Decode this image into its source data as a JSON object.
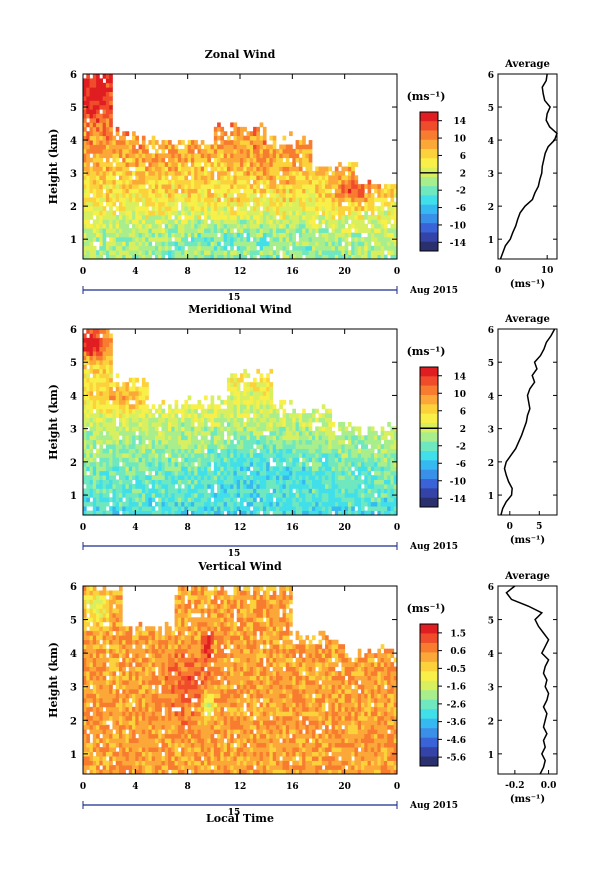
{
  "figure": {
    "x_axis_title": "Local Time",
    "date_label": "Aug 2015",
    "day_label": "15",
    "y_axis_title": "Height (km)",
    "unit_label": "(ms⁻¹)",
    "colormap": [
      "#2a2f6e",
      "#3343a8",
      "#3a63d8",
      "#3a8fe8",
      "#36b8f0",
      "#40dfea",
      "#6fe8c0",
      "#a8ee8c",
      "#d8f060",
      "#f8f048",
      "#fcd23c",
      "#fca838",
      "#f87c30",
      "#f04c2c",
      "#e01e22"
    ]
  },
  "chart_data": [
    {
      "type": "heatmap",
      "title": "Zonal Wind",
      "xlabel": "Local Time",
      "ylabel": "Height (km)",
      "x_ticks": [
        "0",
        "4",
        "8",
        "12",
        "16",
        "20",
        "0"
      ],
      "xlim": [
        0,
        24
      ],
      "y_ticks": [
        "1",
        "2",
        "3",
        "4",
        "5",
        "6"
      ],
      "ylim": [
        0.4,
        6
      ],
      "colorbar": {
        "unit": "(ms⁻¹)",
        "ticks": [
          "14",
          "10",
          "6",
          "2",
          "-2",
          "-6",
          "-10",
          "-14"
        ],
        "range": [
          -16,
          16
        ],
        "zero_line": 2,
        "colors": [
          "#e01e22",
          "#f04c2c",
          "#f87c30",
          "#fca838",
          "#fcd23c",
          "#f8f048",
          "#d8f060",
          "#a8ee8c",
          "#6fe8c0",
          "#40dfea",
          "#36b8f0",
          "#3a8fe8",
          "#3a63d8",
          "#3343a8",
          "#2a2f6e"
        ]
      },
      "field": {
        "surface_value": 0,
        "gradient_per_km": 2.6,
        "top_value": 12,
        "noise": 3,
        "blobs": [
          {
            "t": 0.8,
            "h": 5.5,
            "dt": 1.2,
            "dh": 0.6,
            "v": 16
          },
          {
            "t": 5,
            "h": 3.9,
            "dt": 2.5,
            "dh": 0.4,
            "v": 9
          },
          {
            "t": 14.5,
            "h": 3.6,
            "dt": 2,
            "dh": 0.8,
            "v": 9
          },
          {
            "t": 21,
            "h": 2.5,
            "dt": 2,
            "dh": 0.4,
            "v": 12
          },
          {
            "t": 12,
            "h": 1.0,
            "dt": 8,
            "dh": 0.5,
            "v": -2
          }
        ],
        "coverage": [
          {
            "t0": 0,
            "t1": 2.2,
            "hmax": 6
          },
          {
            "t0": 2.2,
            "t1": 4,
            "hmax": 4.2
          },
          {
            "t0": 4,
            "t1": 10,
            "hmax": 3.9
          },
          {
            "t0": 10,
            "t1": 14,
            "hmax": 4.4
          },
          {
            "t0": 14,
            "t1": 17.5,
            "hmax": 4.0
          },
          {
            "t0": 17.5,
            "t1": 21,
            "hmax": 3.2
          },
          {
            "t0": 21,
            "t1": 24,
            "hmax": 2.6
          }
        ]
      },
      "average": {
        "title": "Average",
        "xlabel": "(ms⁻¹)",
        "x_ticks": [
          "0",
          "10"
        ],
        "xlim": [
          0,
          12
        ],
        "heights": [
          0.4,
          0.6,
          0.8,
          1.0,
          1.2,
          1.4,
          1.6,
          1.8,
          2.0,
          2.2,
          2.4,
          2.6,
          2.8,
          3.0,
          3.2,
          3.4,
          3.6,
          3.8,
          4.0,
          4.2,
          4.4,
          4.6,
          4.8,
          5.0,
          5.2,
          5.4,
          5.6,
          5.8,
          6.0
        ],
        "values": [
          0.5,
          1.0,
          1.5,
          2.5,
          3.0,
          3.6,
          4.0,
          4.5,
          5.5,
          7.0,
          7.5,
          8.2,
          8.5,
          8.9,
          9.0,
          9.3,
          9.6,
          10.2,
          11.5,
          12.0,
          10.5,
          9.8,
          10.0,
          10.6,
          9.5,
          9.2,
          9.0,
          9.8,
          10.0
        ]
      }
    },
    {
      "type": "heatmap",
      "title": "Meridional Wind",
      "xlabel": "Local Time",
      "ylabel": "Height (km)",
      "x_ticks": [
        "0",
        "4",
        "8",
        "12",
        "16",
        "20",
        "0"
      ],
      "xlim": [
        0,
        24
      ],
      "y_ticks": [
        "1",
        "2",
        "3",
        "4",
        "5",
        "6"
      ],
      "ylim": [
        0.4,
        6
      ],
      "colorbar": {
        "unit": "(ms⁻¹)",
        "ticks": [
          "14",
          "10",
          "6",
          "2",
          "-2",
          "-6",
          "-10",
          "-14"
        ],
        "range": [
          -16,
          16
        ],
        "zero_line": 2,
        "colors": [
          "#e01e22",
          "#f04c2c",
          "#f87c30",
          "#fca838",
          "#fcd23c",
          "#f8f048",
          "#d8f060",
          "#a8ee8c",
          "#6fe8c0",
          "#40dfea",
          "#36b8f0",
          "#3a8fe8",
          "#3a63d8",
          "#3343a8",
          "#2a2f6e"
        ]
      },
      "field": {
        "surface_value": -4,
        "gradient_per_km": 2.0,
        "top_value": 8,
        "noise": 2.5,
        "blobs": [
          {
            "t": 0.8,
            "h": 5.6,
            "dt": 1.2,
            "dh": 0.5,
            "v": 16
          },
          {
            "t": 13.5,
            "h": 1.6,
            "dt": 5,
            "dh": 0.9,
            "v": -4
          },
          {
            "t": 3,
            "h": 4.0,
            "dt": 2.5,
            "dh": 0.5,
            "v": 8
          }
        ],
        "coverage": [
          {
            "t0": 0,
            "t1": 2.2,
            "hmax": 6
          },
          {
            "t0": 2.2,
            "t1": 5,
            "hmax": 4.4
          },
          {
            "t0": 5,
            "t1": 11,
            "hmax": 3.8
          },
          {
            "t0": 11,
            "t1": 14.5,
            "hmax": 4.6
          },
          {
            "t0": 14.5,
            "t1": 19,
            "hmax": 3.6
          },
          {
            "t0": 19,
            "t1": 24,
            "hmax": 3.0
          }
        ]
      },
      "average": {
        "title": "Average",
        "xlabel": "(ms⁻¹)",
        "x_ticks": [
          "0",
          "5"
        ],
        "xlim": [
          -2,
          8
        ],
        "heights": [
          0.4,
          0.6,
          0.8,
          1.0,
          1.2,
          1.4,
          1.6,
          1.8,
          2.0,
          2.2,
          2.4,
          2.6,
          2.8,
          3.0,
          3.2,
          3.4,
          3.6,
          3.8,
          4.0,
          4.2,
          4.4,
          4.6,
          4.8,
          5.0,
          5.2,
          5.4,
          5.6,
          5.8,
          6.0
        ],
        "values": [
          -1.5,
          -1.2,
          -0.6,
          0.3,
          0.4,
          -0.2,
          -0.6,
          -0.9,
          -0.6,
          0.2,
          1.0,
          1.5,
          2.0,
          2.4,
          2.8,
          3.0,
          3.4,
          3.2,
          3.0,
          3.4,
          4.2,
          3.8,
          4.6,
          4.2,
          5.2,
          5.8,
          6.2,
          7.0,
          7.6
        ]
      }
    },
    {
      "type": "heatmap",
      "title": "Vertical Wind",
      "xlabel": "Local Time",
      "ylabel": "Height (km)",
      "x_ticks": [
        "0",
        "4",
        "8",
        "12",
        "16",
        "20",
        "0"
      ],
      "xlim": [
        0,
        24
      ],
      "y_ticks": [
        "1",
        "2",
        "3",
        "4",
        "5",
        "6"
      ],
      "ylim": [
        0.4,
        6
      ],
      "colorbar": {
        "unit": "(ms⁻¹)",
        "ticks": [
          "1.5",
          "0.6",
          "-0.5",
          "-1.6",
          "-2.6",
          "-3.6",
          "-4.6",
          "-5.6"
        ],
        "range": [
          -6,
          2
        ],
        "zero_line": null,
        "colors": [
          "#e01e22",
          "#f04c2c",
          "#f87c30",
          "#fca838",
          "#fcd23c",
          "#f8f048",
          "#d8f060",
          "#a8ee8c",
          "#6fe8c0",
          "#40dfea",
          "#36b8f0",
          "#3a8fe8",
          "#3a63d8",
          "#3343a8",
          "#2a2f6e"
        ]
      },
      "field": {
        "surface_value": 0.2,
        "gradient_per_km": 0,
        "top_value": 0.2,
        "noise": 0.6,
        "blobs": [
          {
            "t": 9.5,
            "h": 4.2,
            "dt": 0.4,
            "dh": 0.4,
            "v": 2
          },
          {
            "t": 9.5,
            "h": 2.4,
            "dt": 0.5,
            "dh": 0.4,
            "v": -2.5
          },
          {
            "t": 8,
            "h": 3.0,
            "dt": 1.5,
            "dh": 1.0,
            "v": 1.0
          },
          {
            "t": 1,
            "h": 5.4,
            "dt": 1.2,
            "dh": 0.5,
            "v": -1.2
          }
        ],
        "coverage": [
          {
            "t0": 0,
            "t1": 3,
            "hmax": 6
          },
          {
            "t0": 3,
            "t1": 7,
            "hmax": 4.8
          },
          {
            "t0": 7,
            "t1": 16,
            "hmax": 6
          },
          {
            "t0": 16,
            "t1": 20,
            "hmax": 4.4
          },
          {
            "t0": 20,
            "t1": 24,
            "hmax": 4.0
          }
        ]
      },
      "average": {
        "title": "Average",
        "xlabel": "(ms⁻¹)",
        "x_ticks": [
          "-0.2",
          "0.0"
        ],
        "xlim": [
          -0.3,
          0.05
        ],
        "heights": [
          0.4,
          0.6,
          0.8,
          1.0,
          1.2,
          1.4,
          1.6,
          1.8,
          2.0,
          2.2,
          2.4,
          2.6,
          2.8,
          3.0,
          3.2,
          3.4,
          3.6,
          3.8,
          4.0,
          4.2,
          4.4,
          4.6,
          4.8,
          5.0,
          5.2,
          5.4,
          5.6,
          5.8,
          6.0
        ],
        "values": [
          -0.05,
          -0.03,
          -0.02,
          -0.04,
          -0.02,
          -0.03,
          -0.01,
          -0.03,
          -0.02,
          -0.01,
          -0.03,
          -0.01,
          0.0,
          -0.02,
          -0.01,
          -0.03,
          -0.02,
          0.0,
          -0.04,
          -0.02,
          0.0,
          -0.03,
          -0.06,
          -0.08,
          -0.04,
          -0.12,
          -0.22,
          -0.25,
          -0.2
        ]
      }
    }
  ]
}
